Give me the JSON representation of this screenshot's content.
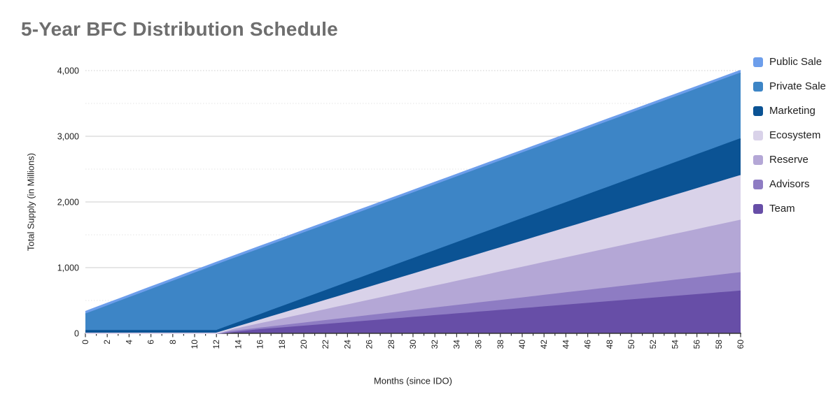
{
  "title": "5-Year BFC Distribution Schedule",
  "axes": {
    "x_title": "Months (since IDO)",
    "y_title": "Total Supply (in Millions)"
  },
  "legend": {
    "position": "right",
    "items": [
      {
        "label": "Public Sale",
        "color": "#6d9eeb"
      },
      {
        "label": "Private Sale",
        "color": "#3d85c6"
      },
      {
        "label": "Marketing",
        "color": "#0b5394"
      },
      {
        "label": "Ecosystem",
        "color": "#d9d2e9"
      },
      {
        "label": "Reserve",
        "color": "#b4a7d6"
      },
      {
        "label": "Advisors",
        "color": "#8e7cc3"
      },
      {
        "label": "Team",
        "color": "#674ea7"
      }
    ]
  },
  "chart_data": {
    "type": "area",
    "stacked": true,
    "stack_order": "first-legend-series-on-top",
    "title": "5-Year BFC Distribution Schedule",
    "xlabel": "Months (since IDO)",
    "ylabel": "Total Supply (in Millions)",
    "xlim": [
      0,
      60
    ],
    "ylim": [
      0,
      4000
    ],
    "grid": true,
    "legend_position": "right",
    "x_tick_step": 2,
    "x_minor_tick_every": 1,
    "x_tick_labels": [
      "0",
      "2",
      "4",
      "6",
      "8",
      "10",
      "12",
      "14",
      "16",
      "18",
      "20",
      "22",
      "24",
      "26",
      "28",
      "30",
      "32",
      "34",
      "36",
      "38",
      "40",
      "42",
      "44",
      "46",
      "48",
      "50",
      "52",
      "54",
      "56",
      "58",
      "60"
    ],
    "y_tick_labels": [
      {
        "value": 0,
        "label": "0"
      },
      {
        "value": 1000,
        "label": "1,000"
      },
      {
        "value": 2000,
        "label": "2,000"
      },
      {
        "value": 3000,
        "label": "3,000"
      },
      {
        "value": 4000,
        "label": "4,000"
      }
    ],
    "y_major_gridlines": [
      1000,
      2000,
      3000,
      4000
    ],
    "y_minor_gridlines": [
      500,
      1500,
      2500,
      3500
    ],
    "total_supply_millions": 4000,
    "series": [
      {
        "name": "Public Sale",
        "color": "#6d9eeb",
        "total_millions": 40,
        "vesting_points": [
          [
            0,
            40
          ],
          [
            60,
            40
          ]
        ]
      },
      {
        "name": "Private Sale",
        "color": "#3d85c6",
        "total_millions": 1000,
        "vesting_points": [
          [
            0,
            250
          ],
          [
            12,
            1000
          ],
          [
            60,
            1000
          ]
        ]
      },
      {
        "name": "Marketing",
        "color": "#0b5394",
        "total_millions": 560,
        "vesting_points": [
          [
            0,
            40
          ],
          [
            12,
            40
          ],
          [
            60,
            560
          ]
        ]
      },
      {
        "name": "Ecosystem",
        "color": "#d9d2e9",
        "total_millions": 680,
        "vesting_points": [
          [
            0,
            0
          ],
          [
            12,
            0
          ],
          [
            60,
            680
          ]
        ]
      },
      {
        "name": "Reserve",
        "color": "#b4a7d6",
        "total_millions": 800,
        "vesting_points": [
          [
            0,
            0
          ],
          [
            12,
            0
          ],
          [
            60,
            800
          ]
        ]
      },
      {
        "name": "Advisors",
        "color": "#8e7cc3",
        "total_millions": 280,
        "vesting_points": [
          [
            0,
            0
          ],
          [
            12,
            0
          ],
          [
            60,
            280
          ]
        ]
      },
      {
        "name": "Team",
        "color": "#674ea7",
        "total_millions": 640,
        "vesting_points": [
          [
            0,
            0
          ],
          [
            12,
            0
          ],
          [
            60,
            640
          ]
        ]
      }
    ]
  },
  "styles": {
    "title_color": "#6e6e6e",
    "axis_text_color": "#212121",
    "axis_line_color": "#333333",
    "gridline_major_color": "#cccccc",
    "gridline_minor_color": "#e4e4e4",
    "background": "#ffffff"
  }
}
